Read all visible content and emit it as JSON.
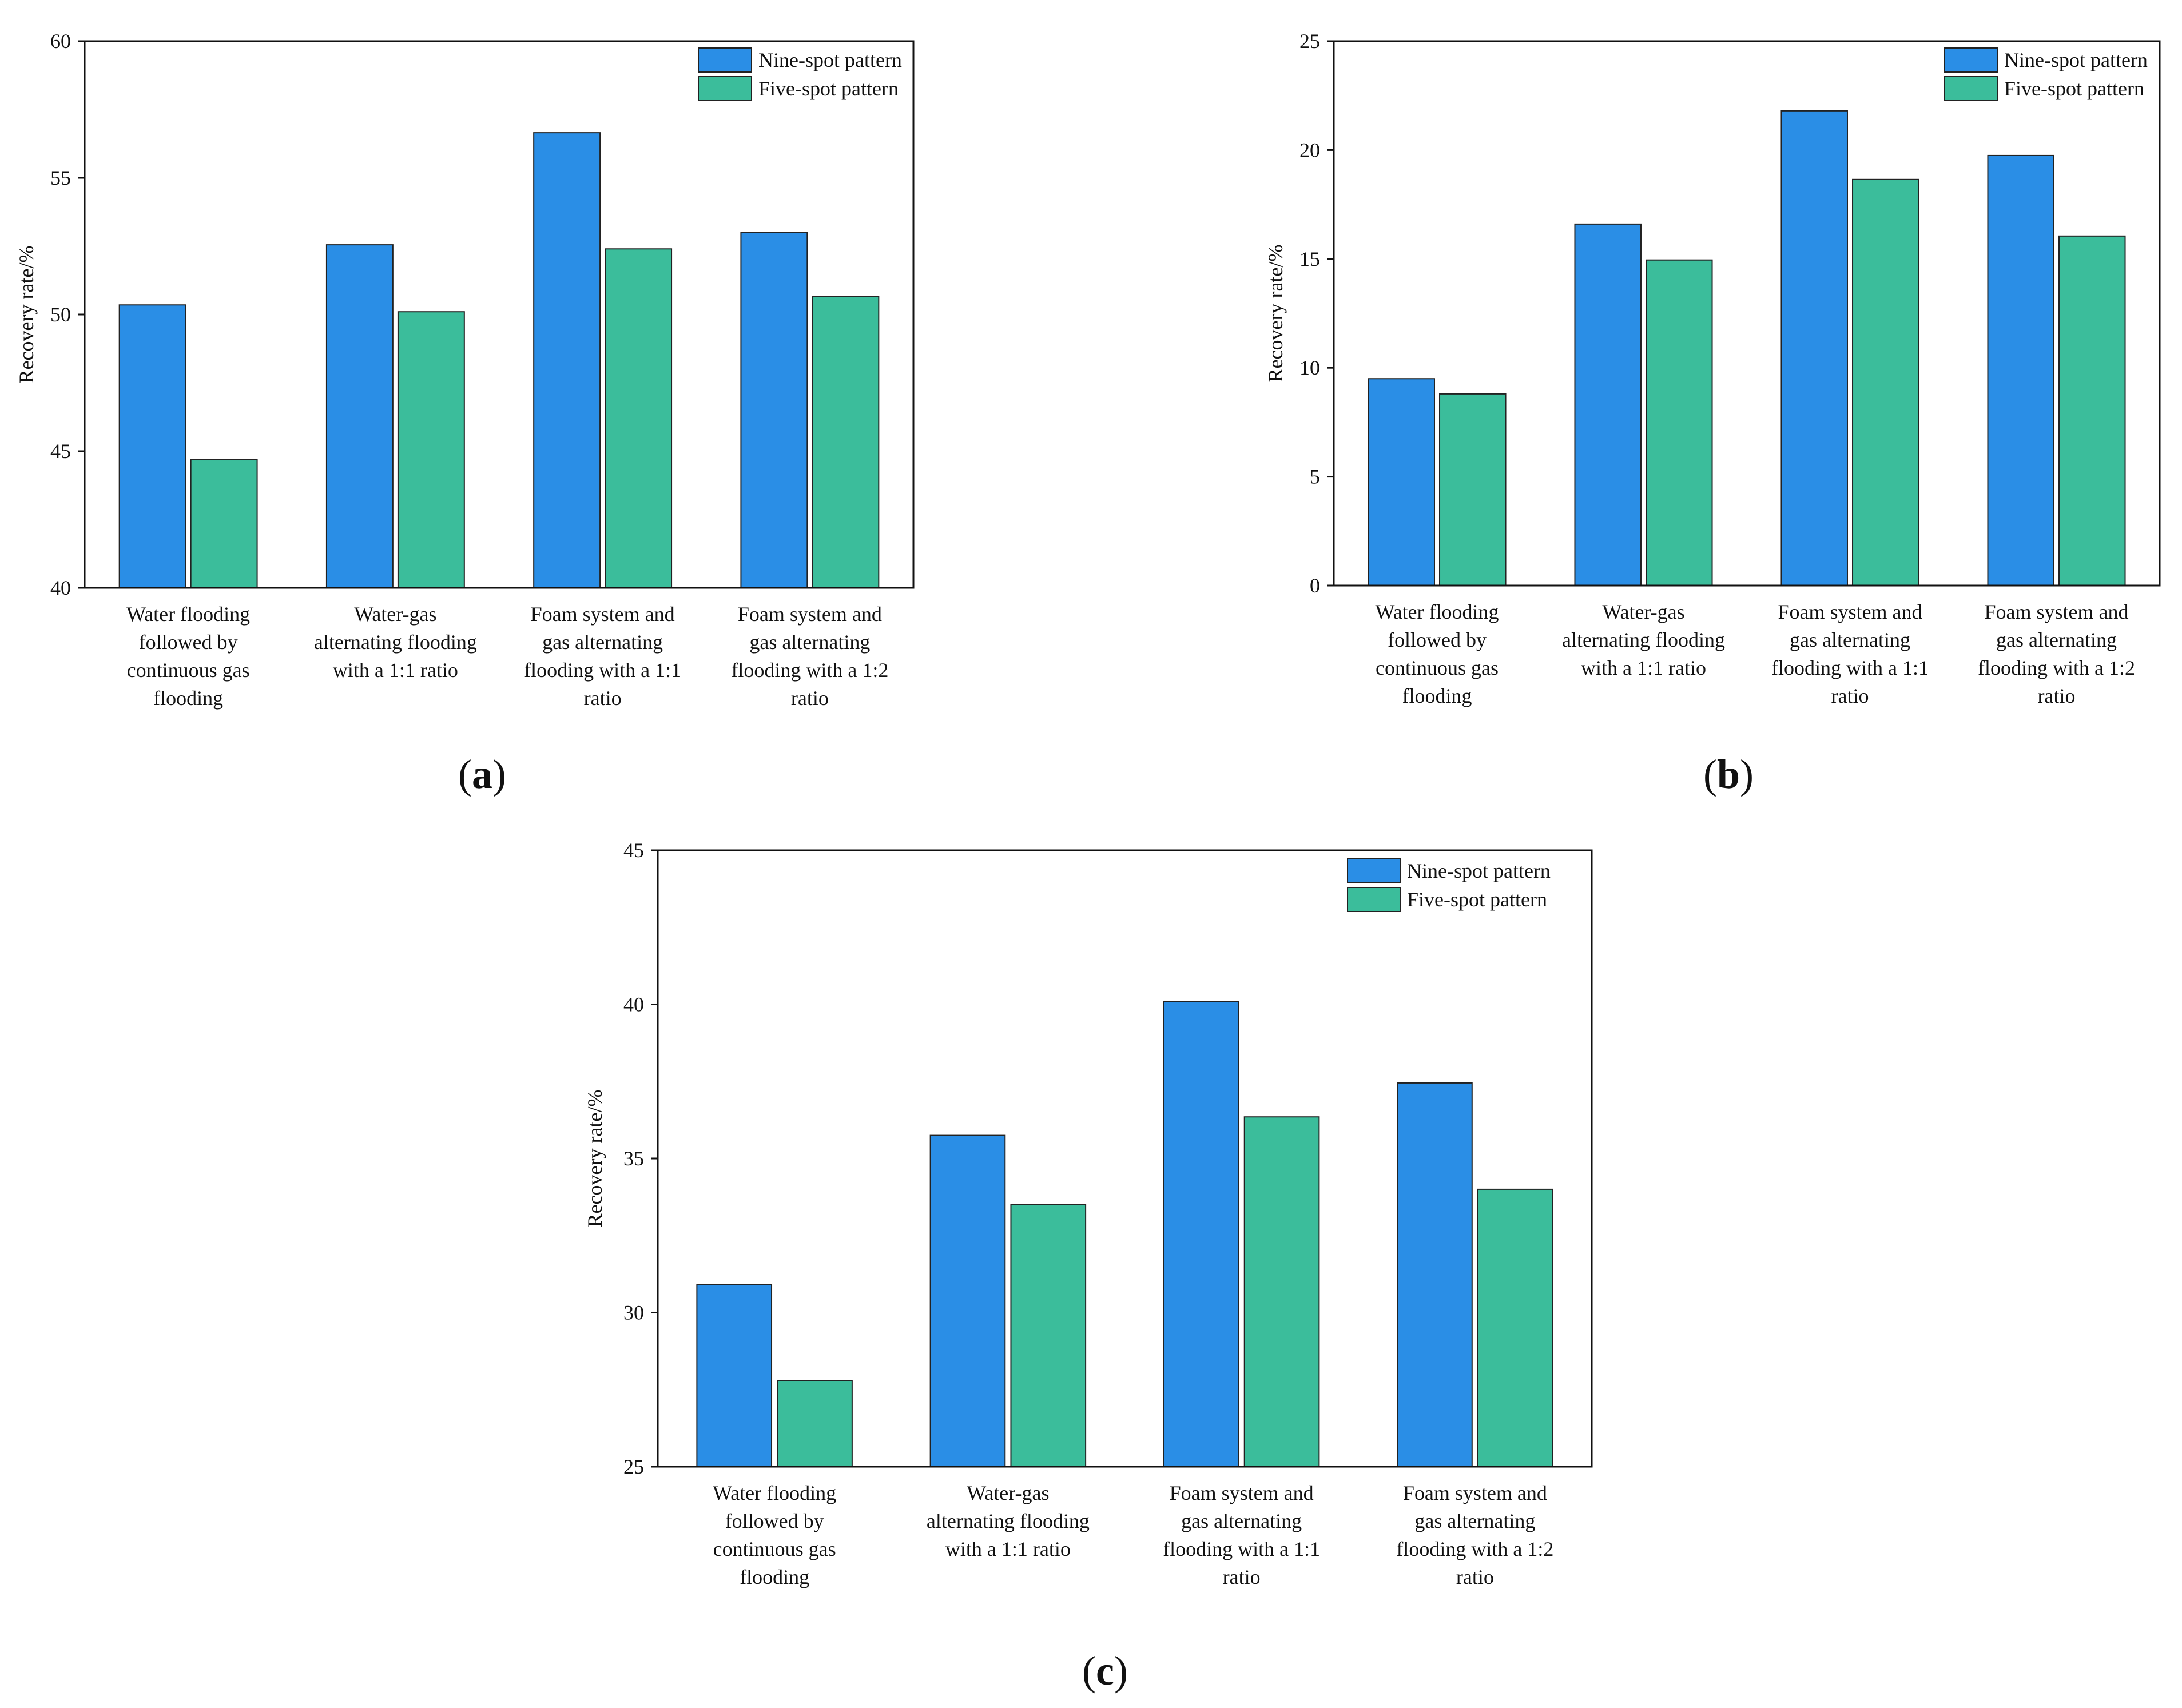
{
  "colors": {
    "nine": "#2a8ee6",
    "five": "#3bbd9b",
    "axis": "#111111"
  },
  "chart_data": [
    {
      "type": "bar",
      "panel": "a",
      "caption_open": "(",
      "caption_letter": "a",
      "caption_close": ")",
      "ylabel": "Recovery rate/%",
      "ylim": [
        40,
        60
      ],
      "yticks": [
        "40",
        "45",
        "50",
        "55",
        "60"
      ],
      "categories": [
        [
          "Water flooding",
          "followed by",
          "continuous gas",
          "flooding"
        ],
        [
          "Water-gas",
          "alternating flooding",
          "with a 1:1 ratio"
        ],
        [
          "Foam system and",
          "gas alternating",
          "flooding with a 1:1",
          "ratio"
        ],
        [
          "Foam system and",
          "gas alternating",
          "flooding with a 1:2",
          "ratio"
        ]
      ],
      "series": [
        {
          "name": "Nine-spot pattern",
          "values": [
            50.35,
            52.55,
            56.65,
            53.0
          ]
        },
        {
          "name": "Five-spot pattern",
          "values": [
            44.7,
            50.1,
            52.4,
            50.65
          ]
        }
      ],
      "legend": "top-right"
    },
    {
      "type": "bar",
      "panel": "b",
      "caption_open": "(",
      "caption_letter": "b",
      "caption_close": ")",
      "ylabel": "Recovery rate/%",
      "ylim": [
        0,
        25
      ],
      "yticks": [
        "0",
        "5",
        "10",
        "15",
        "20",
        "25"
      ],
      "categories": [
        [
          "Water flooding",
          "followed by",
          "continuous gas",
          "flooding"
        ],
        [
          "Water-gas",
          "alternating flooding",
          "with a 1:1 ratio"
        ],
        [
          "Foam system and",
          "gas alternating",
          "flooding with a 1:1",
          "ratio"
        ],
        [
          "Foam system and",
          "gas alternating",
          "flooding with a 1:2",
          "ratio"
        ]
      ],
      "series": [
        {
          "name": "Nine-spot pattern",
          "values": [
            9.5,
            16.6,
            21.8,
            19.75
          ]
        },
        {
          "name": "Five-spot pattern",
          "values": [
            8.8,
            14.95,
            18.65,
            16.05
          ]
        }
      ],
      "legend": "top-right"
    },
    {
      "type": "bar",
      "panel": "c",
      "caption_open": "(",
      "caption_letter": "c",
      "caption_close": ")",
      "ylabel": "Recovery rate/%",
      "ylim": [
        25,
        45
      ],
      "yticks": [
        "25",
        "30",
        "35",
        "40",
        "45"
      ],
      "categories": [
        [
          "Water flooding",
          "followed by",
          "continuous gas",
          "flooding"
        ],
        [
          "Water-gas",
          "alternating flooding",
          "with a 1:1 ratio"
        ],
        [
          "Foam system and",
          "gas alternating",
          "flooding with a 1:1",
          "ratio"
        ],
        [
          "Foam system and",
          "gas alternating",
          "flooding with a 1:2",
          "ratio"
        ]
      ],
      "series": [
        {
          "name": "Nine-spot pattern",
          "values": [
            30.9,
            35.75,
            40.1,
            37.45
          ]
        },
        {
          "name": "Five-spot pattern",
          "values": [
            27.8,
            33.5,
            36.35,
            34.0
          ]
        }
      ],
      "legend": "top-right"
    }
  ]
}
